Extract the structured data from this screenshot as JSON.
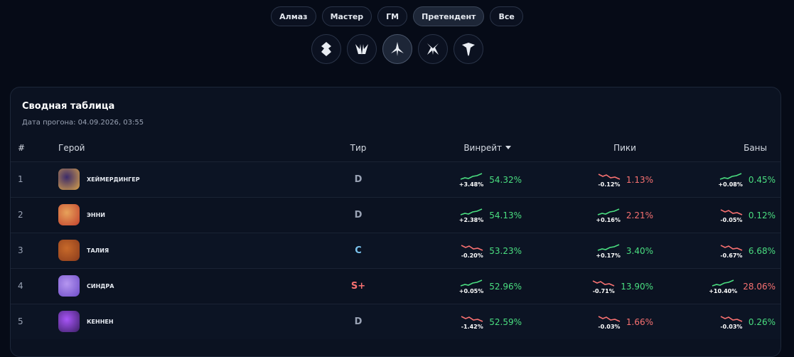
{
  "filters": {
    "ranks": [
      "Алмаз",
      "Мастер",
      "ГМ",
      "Претендент",
      "Все"
    ],
    "active_rank": 3,
    "active_icon": 2
  },
  "table": {
    "title": "Сводная таблица",
    "subtitle": "Дата прогона: 04.09.2026, 03:55",
    "columns": [
      "#",
      "Герой",
      "Тир",
      "Винрейт",
      "Пики",
      "Баны"
    ],
    "rows": [
      {
        "rank": "1",
        "hero": "ХЕЙМЕРДИНГЕР",
        "tier": "D",
        "tier_color": "#9aa3b5",
        "winrate": {
          "delta": "+3.48%",
          "value": "54.32%",
          "color": "#4ade80"
        },
        "picks": {
          "delta": "-0.12%",
          "value": "1.13%",
          "color": "#f87171"
        },
        "bans": {
          "delta": "+0.08%",
          "value": "0.45%",
          "color": "#4ade80"
        }
      },
      {
        "rank": "2",
        "hero": "ЭННИ",
        "tier": "D",
        "tier_color": "#9aa3b5",
        "winrate": {
          "delta": "+2.38%",
          "value": "54.13%",
          "color": "#4ade80"
        },
        "picks": {
          "delta": "+0.16%",
          "value": "2.21%",
          "color": "#f87171"
        },
        "bans": {
          "delta": "-0.05%",
          "value": "0.12%",
          "color": "#4ade80"
        }
      },
      {
        "rank": "3",
        "hero": "ТАЛИЯ",
        "tier": "C",
        "tier_color": "#7cc4ef",
        "winrate": {
          "delta": "-0.20%",
          "value": "53.23%",
          "color": "#4ade80"
        },
        "picks": {
          "delta": "+0.17%",
          "value": "3.40%",
          "color": "#4ade80"
        },
        "bans": {
          "delta": "-0.67%",
          "value": "6.68%",
          "color": "#4ade80"
        }
      },
      {
        "rank": "4",
        "hero": "СИНДРА",
        "tier": "S+",
        "tier_color": "#f87171",
        "winrate": {
          "delta": "+0.05%",
          "value": "52.96%",
          "color": "#4ade80"
        },
        "picks": {
          "delta": "-0.71%",
          "value": "13.90%",
          "color": "#4ade80"
        },
        "bans": {
          "delta": "+10.40%",
          "value": "28.06%",
          "color": "#f87171"
        }
      },
      {
        "rank": "5",
        "hero": "КЕННЕН",
        "tier": "D",
        "tier_color": "#9aa3b5",
        "winrate": {
          "delta": "-1.42%",
          "value": "52.59%",
          "color": "#4ade80"
        },
        "picks": {
          "delta": "-0.03%",
          "value": "1.66%",
          "color": "#f87171"
        },
        "bans": {
          "delta": "-0.03%",
          "value": "0.26%",
          "color": "#4ade80"
        }
      }
    ]
  }
}
